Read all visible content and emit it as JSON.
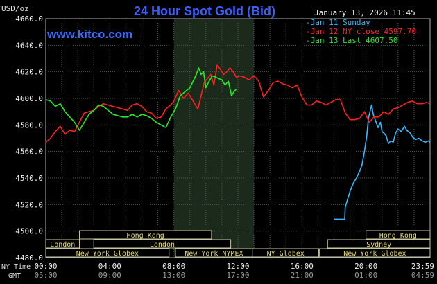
{
  "chart_data": {
    "type": "line",
    "title": "24 Hour Spot Gold (Bid)",
    "unit": "USD/oz",
    "website": "www.kitco.com",
    "timestamp": "January 13, 2026 11:45",
    "ylim": [
      4480,
      4660
    ],
    "yticks": [
      "4480.0",
      "4500.0",
      "4520.0",
      "4540.0",
      "4560.0",
      "4580.0",
      "4600.0",
      "4620.0",
      "4640.0",
      "4660.0"
    ],
    "xlim": [
      0,
      24
    ],
    "highlight_hours": [
      8,
      13
    ],
    "x_ticks_ny": [
      "00:00",
      "04:00",
      "08:00",
      "12:00",
      "16:00",
      "20:00",
      "23:59"
    ],
    "x_ticks_gmt": [
      "05:00",
      "09:00",
      "13:00",
      "17:00",
      "21:00",
      "01:00",
      "04:59"
    ],
    "axis_labels": {
      "ny": "NY Time",
      "gmt": "GMT"
    },
    "legend": [
      {
        "label": "Jan 11 Sunday",
        "color": "#33bbff"
      },
      {
        "label": "Jan 12 NY close 4597.70",
        "color": "#ff2020"
      },
      {
        "label": "Jan 13 Last 4607.50",
        "color": "#22ee22"
      }
    ],
    "sessions": [
      {
        "label": "Hong Kong",
        "row": 0,
        "start": 2.1,
        "end": 10.35
      },
      {
        "label": "Hong Kong",
        "row": 0,
        "start": 20.0,
        "end": 24.0
      },
      {
        "label": "London",
        "row": 1,
        "start": 0.0,
        "end": 2.1
      },
      {
        "label": "London",
        "row": 1,
        "start": 3.0,
        "end": 11.55
      },
      {
        "label": "Sydney",
        "row": 1,
        "start": 17.6,
        "end": 24.0
      },
      {
        "label": "New York Globex",
        "row": 2,
        "start": 0.0,
        "end": 7.7
      },
      {
        "label": "New York NYMEX",
        "row": 2,
        "start": 8.1,
        "end": 12.9
      },
      {
        "label": "NY Globex",
        "row": 2,
        "start": 12.9,
        "end": 17.05
      },
      {
        "label": "New York Globex",
        "row": 2,
        "start": 17.1,
        "end": 24.0
      }
    ],
    "series": [
      {
        "name": "Jan 11 Sunday",
        "color": "#33bbff",
        "x": [
          18.0,
          18.67,
          18.7,
          18.8,
          19.0,
          19.2,
          19.4,
          19.6,
          19.75,
          19.9,
          20.05,
          20.15,
          20.25,
          20.35,
          20.45,
          20.6,
          20.75,
          20.9,
          21.0,
          21.1,
          21.25,
          21.4,
          21.55,
          21.7,
          21.85,
          22.0,
          22.2,
          22.4,
          22.55,
          22.75,
          22.9,
          23.1,
          23.3,
          23.5,
          23.7,
          23.9,
          23.99
        ],
        "y": [
          4509,
          4509,
          4518,
          4522,
          4530,
          4536,
          4540,
          4545,
          4550,
          4560,
          4572,
          4585,
          4590,
          4595,
          4588,
          4583,
          4578,
          4582,
          4575,
          4574,
          4572,
          4566,
          4568,
          4567,
          4574,
          4577,
          4575,
          4579,
          4576,
          4574,
          4571,
          4569,
          4570,
          4568,
          4567,
          4568,
          4567
        ]
      },
      {
        "name": "Jan 12 NY close 4597.70",
        "color": "#ff2020",
        "x": [
          0.0,
          0.3,
          0.6,
          0.9,
          1.2,
          1.5,
          1.8,
          2.1,
          2.4,
          2.7,
          3.0,
          3.3,
          3.6,
          3.9,
          4.2,
          4.5,
          4.8,
          5.1,
          5.4,
          5.7,
          6.0,
          6.3,
          6.6,
          6.9,
          7.2,
          7.5,
          7.8,
          8.0,
          8.3,
          8.6,
          8.9,
          9.1,
          9.3,
          9.5,
          9.7,
          9.9,
          10.1,
          10.3,
          10.5,
          10.7,
          10.9,
          11.1,
          11.3,
          11.5,
          11.7,
          11.9,
          12.1,
          12.4,
          12.7,
          13.0,
          13.3,
          13.6,
          13.9,
          14.2,
          14.5,
          14.8,
          15.1,
          15.4,
          15.7,
          16.0,
          16.3,
          16.6,
          16.9,
          17.2,
          17.5,
          17.8,
          18.1,
          18.4,
          18.7,
          19.0,
          19.3,
          19.6,
          19.9,
          20.2,
          20.5,
          20.8,
          21.1,
          21.4,
          21.7,
          22.0,
          22.3,
          22.6,
          22.9,
          23.2,
          23.5,
          23.8,
          23.99
        ],
        "y": [
          4567,
          4570,
          4575,
          4579,
          4573,
          4576,
          4575,
          4582,
          4589,
          4590,
          4591,
          4594,
          4596,
          4595,
          4594,
          4593,
          4592,
          4591,
          4595,
          4596,
          4594,
          4590,
          4589,
          4585,
          4586,
          4592,
          4595,
          4598,
          4606,
          4600,
          4604,
          4600,
          4596,
          4592,
          4602,
          4612,
          4615,
          4618,
          4610,
          4625,
          4622,
          4618,
          4620,
          4623,
          4620,
          4616,
          4617,
          4616,
          4614,
          4617,
          4613,
          4601,
          4606,
          4612,
          4613,
          4611,
          4610,
          4608,
          4610,
          4601,
          4595,
          4595,
          4598,
          4597,
          4595,
          4597,
          4599,
          4599,
          4589,
          4584,
          4584,
          4585,
          4590,
          4582,
          4586,
          4586,
          4590,
          4588,
          4592,
          4593,
          4595,
          4597,
          4598,
          4596,
          4596,
          4597,
          4596
        ]
      },
      {
        "name": "Jan 13 Last 4607.50",
        "color": "#22ee22",
        "x": [
          0.0,
          0.3,
          0.6,
          0.9,
          1.2,
          1.5,
          1.8,
          2.1,
          2.4,
          2.7,
          3.0,
          3.3,
          3.6,
          3.9,
          4.2,
          4.5,
          4.8,
          5.1,
          5.4,
          5.7,
          6.0,
          6.3,
          6.6,
          6.9,
          7.2,
          7.5,
          7.8,
          8.1,
          8.4,
          8.7,
          9.0,
          9.2,
          9.4,
          9.55,
          9.7,
          9.85,
          10.0,
          10.2,
          10.4,
          10.6,
          10.8,
          11.0,
          11.2,
          11.4,
          11.6,
          11.75,
          11.9
        ],
        "y": [
          4599,
          4598,
          4594,
          4596,
          4590,
          4586,
          4582,
          4576,
          4582,
          4588,
          4591,
          4595,
          4594,
          4591,
          4588,
          4587,
          4586,
          4586,
          4588,
          4586,
          4588,
          4587,
          4585,
          4582,
          4580,
          4578,
          4586,
          4592,
          4602,
          4605,
          4608,
          4613,
          4618,
          4623,
          4618,
          4620,
          4608,
          4613,
          4617,
          4616,
          4615,
          4614,
          4610,
          4613,
          4602,
          4605,
          4607
        ]
      }
    ]
  }
}
